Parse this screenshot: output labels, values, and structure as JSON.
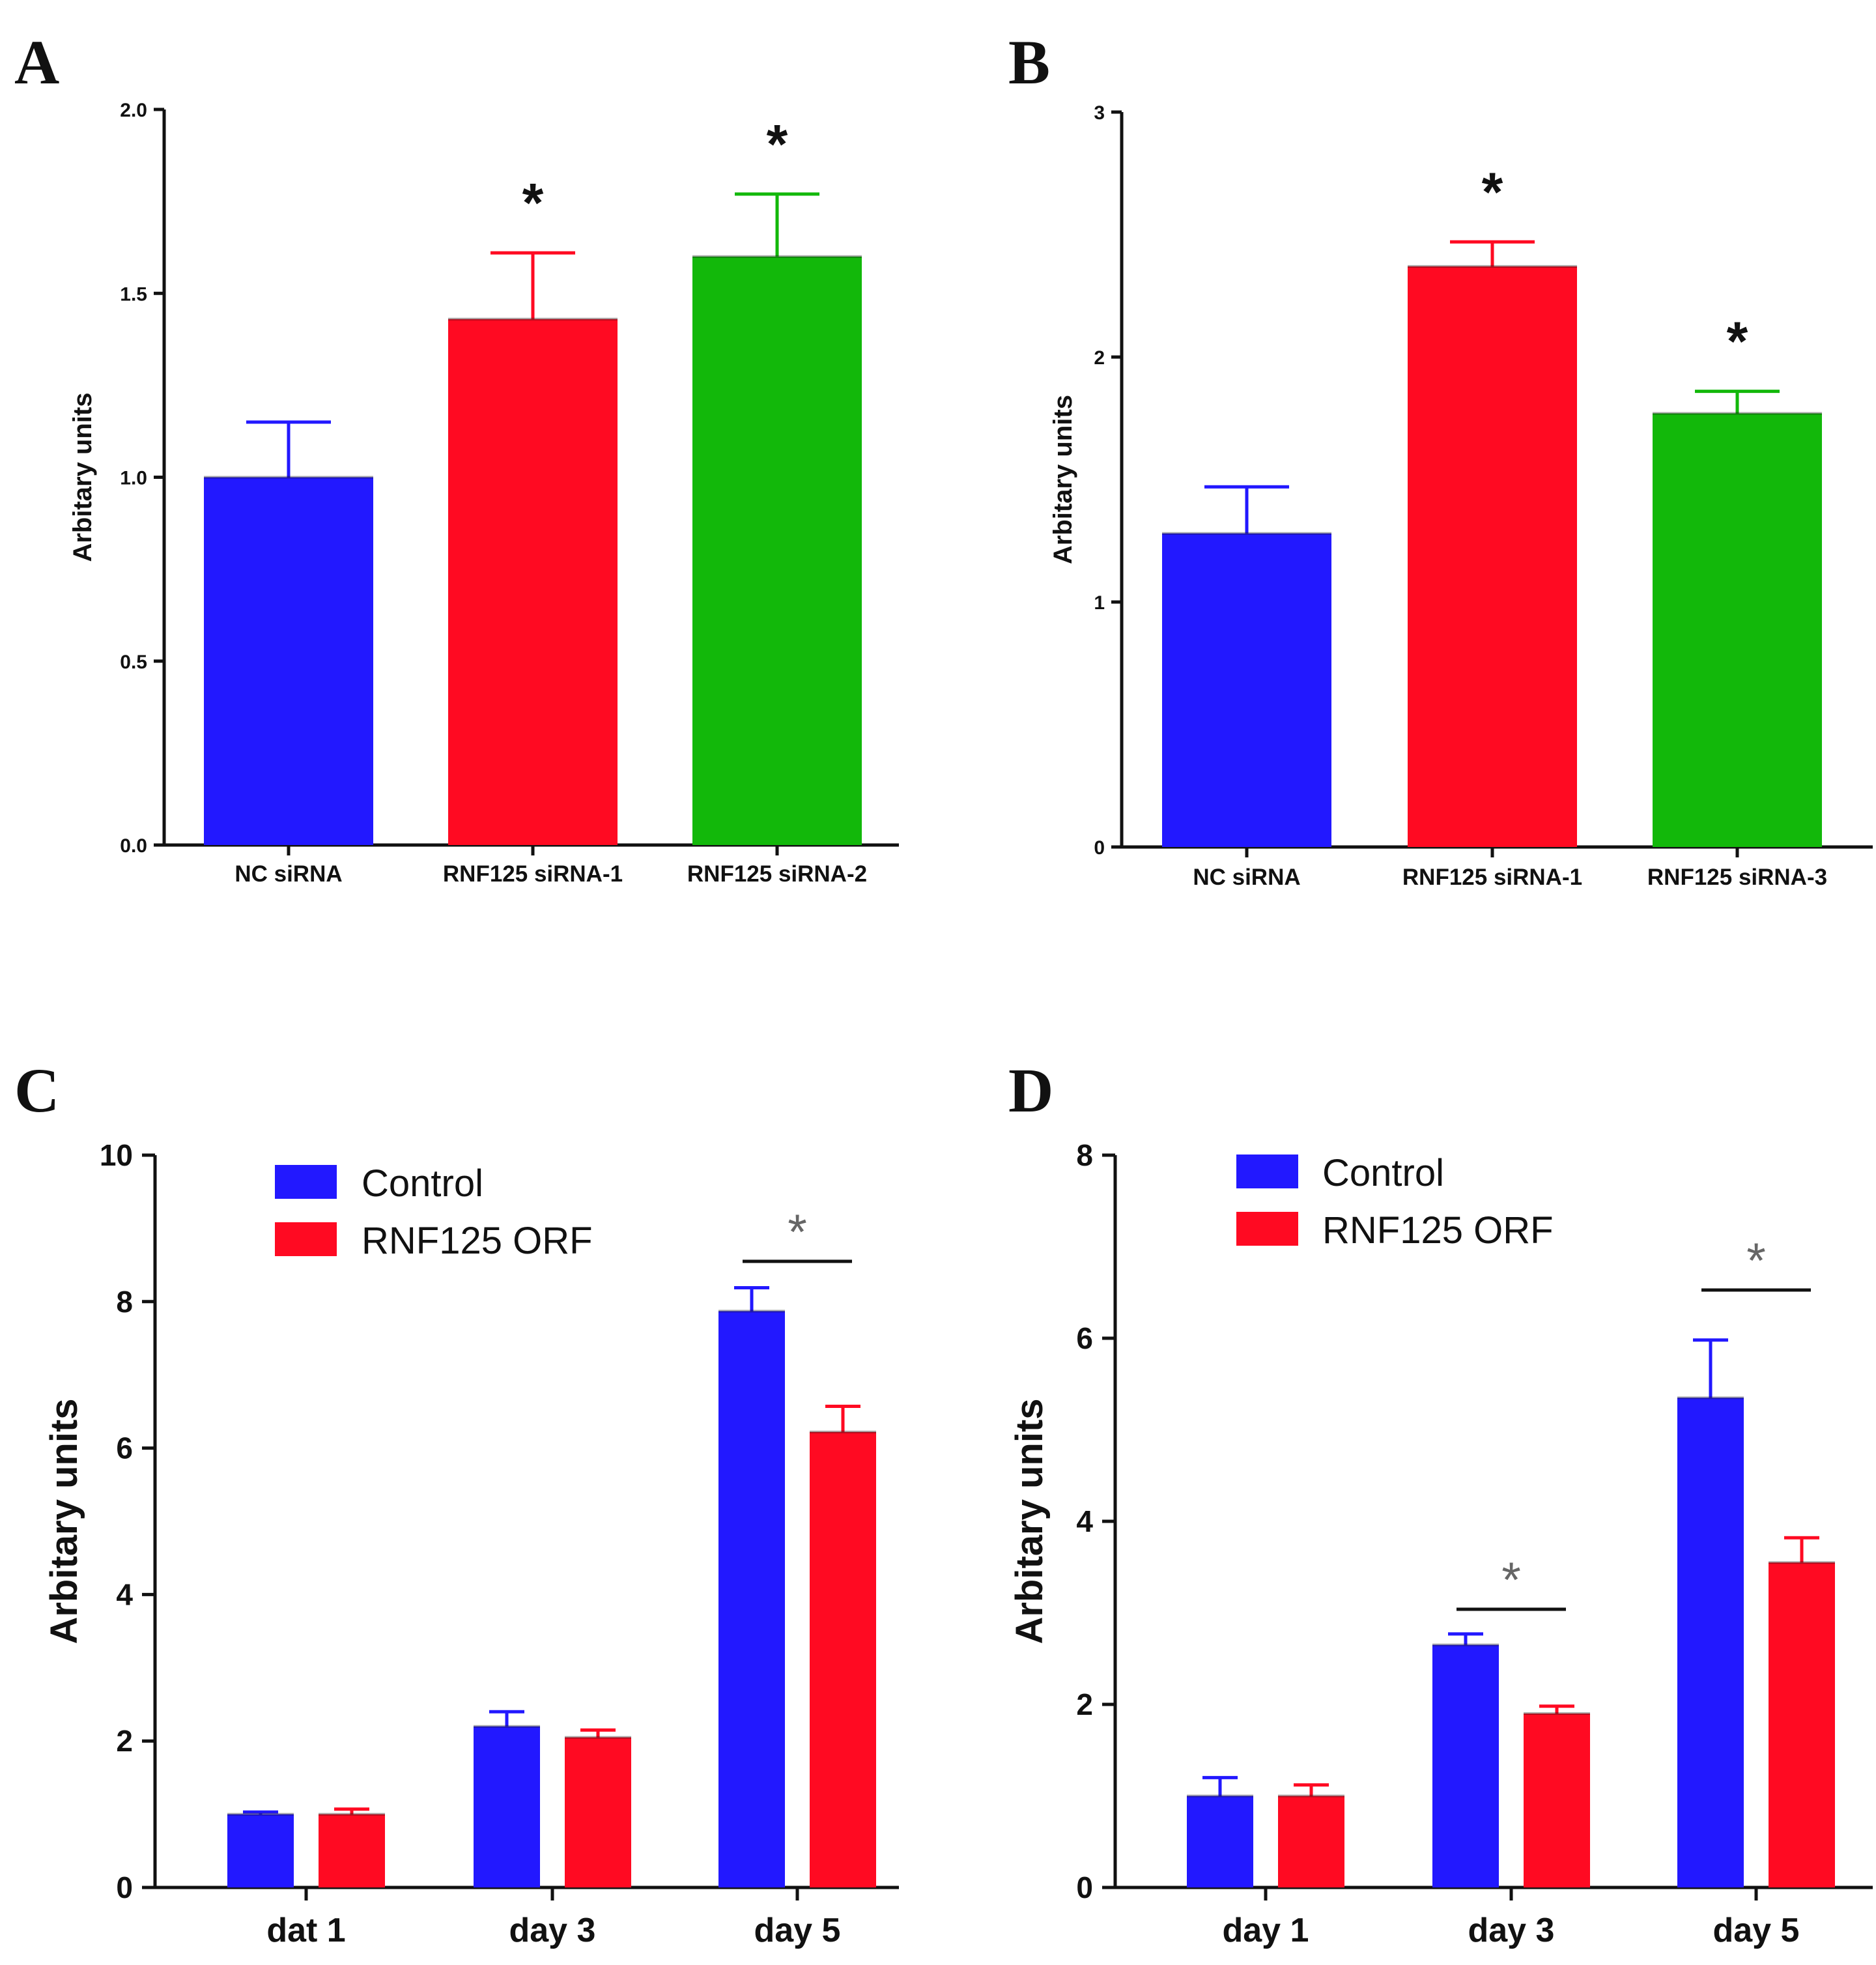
{
  "colors": {
    "blue": "#2218ff",
    "red": "#ff0a22",
    "green": "#12b80a",
    "axis": "#111111",
    "star_grey": "#666666"
  },
  "chart_data": [
    {
      "panel": "A",
      "type": "bar",
      "ylabel": "Arbitary units",
      "categories": [
        "NC siRNA",
        "RNF125 siRNA-1",
        "RNF125 siRNA-2"
      ],
      "values": [
        1.0,
        1.43,
        1.6
      ],
      "errors": [
        0.15,
        0.18,
        0.17
      ],
      "bar_colors": [
        "#2218ff",
        "#ff0a22",
        "#12b80a"
      ],
      "significance": [
        "",
        "*",
        "*"
      ],
      "ylim": [
        0,
        2.0
      ],
      "yticks": [
        0.0,
        0.5,
        1.0,
        1.5,
        2.0
      ],
      "ytick_labels": [
        "0.0",
        "0.5",
        "1.0",
        "1.5",
        "2.0"
      ]
    },
    {
      "panel": "B",
      "type": "bar",
      "ylabel": "Arbitary units",
      "categories": [
        "NC siRNA",
        "RNF125 siRNA-1",
        "RNF125 siRNA-3"
      ],
      "values": [
        1.28,
        2.37,
        1.77
      ],
      "errors": [
        0.19,
        0.1,
        0.09
      ],
      "bar_colors": [
        "#2218ff",
        "#ff0a22",
        "#12b80a"
      ],
      "significance": [
        "",
        "*",
        "*"
      ],
      "ylim": [
        0,
        3
      ],
      "yticks": [
        0,
        1,
        2,
        3
      ],
      "ytick_labels": [
        "0",
        "1",
        "2",
        "3"
      ]
    },
    {
      "panel": "C",
      "type": "bar",
      "ylabel": "Arbitary units",
      "categories": [
        "dat 1",
        "day 3",
        "day 5"
      ],
      "series": [
        {
          "name": "Control",
          "color": "#2218ff",
          "values": [
            1.0,
            2.2,
            7.87
          ],
          "errors": [
            0.03,
            0.2,
            0.32
          ]
        },
        {
          "name": "RNF125 ORF",
          "color": "#ff0a22",
          "values": [
            1.0,
            2.05,
            6.22
          ],
          "errors": [
            0.07,
            0.1,
            0.35
          ]
        }
      ],
      "significance": [
        {
          "category": "day 5",
          "label": "*"
        }
      ],
      "ylim": [
        0,
        10
      ],
      "yticks": [
        0,
        2,
        4,
        6,
        8,
        10
      ],
      "ytick_labels": [
        "0",
        "2",
        "4",
        "6",
        "8",
        "10"
      ],
      "legend": "top-left"
    },
    {
      "panel": "D",
      "type": "bar",
      "ylabel": "Arbitary units",
      "categories": [
        "day 1",
        "day 3",
        "day 5"
      ],
      "series": [
        {
          "name": "Control",
          "color": "#2218ff",
          "values": [
            1.0,
            2.65,
            5.35
          ],
          "errors": [
            0.2,
            0.12,
            0.63
          ]
        },
        {
          "name": "RNF125 ORF",
          "color": "#ff0a22",
          "values": [
            1.0,
            1.9,
            3.55
          ],
          "errors": [
            0.12,
            0.08,
            0.27
          ]
        }
      ],
      "significance": [
        {
          "category": "day 3",
          "label": "*"
        },
        {
          "category": "day 5",
          "label": "*"
        }
      ],
      "ylim": [
        0,
        8
      ],
      "yticks": [
        0,
        2,
        4,
        6,
        8
      ],
      "ytick_labels": [
        "0",
        "2",
        "4",
        "6",
        "8"
      ],
      "legend": "top-left"
    }
  ]
}
